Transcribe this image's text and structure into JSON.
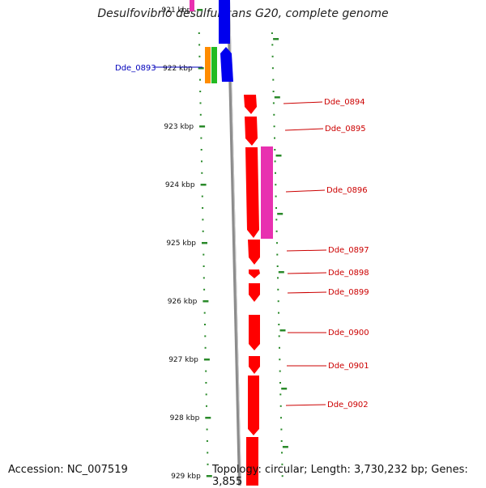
{
  "title": "Desulfovibrio desulfuricans G20, complete genome",
  "footer": {
    "accession": "Accession: NC_007519",
    "topology": "Topology: circular; Length: 3,730,232 bp; Genes: 3,855"
  },
  "colors": {
    "backbone": "#8c8c8c",
    "tick": "#2a8a2a",
    "forward_gene": "#ff0000",
    "reverse_gene": "#0000ee",
    "label_red": "#cc0000",
    "label_blue": "#0000bb"
  },
  "ticks": [
    {
      "label": "921 kbp",
      "kbp": 921
    },
    {
      "label": "922 kbp",
      "kbp": 922
    },
    {
      "label": "923 kbp",
      "kbp": 923
    },
    {
      "label": "924 kbp",
      "kbp": 924
    },
    {
      "label": "925 kbp",
      "kbp": 925
    },
    {
      "label": "926 kbp",
      "kbp": 926
    },
    {
      "label": "927 kbp",
      "kbp": 927
    },
    {
      "label": "928 kbp",
      "kbp": 928
    },
    {
      "label": "929 kbp",
      "kbp": 929
    }
  ],
  "gene_labels": [
    {
      "name": "Dde_0893",
      "color": "#0000bb"
    },
    {
      "name": "Dde_0894",
      "color": "#cc0000"
    },
    {
      "name": "Dde_0895",
      "color": "#cc0000"
    },
    {
      "name": "Dde_0896",
      "color": "#cc0000"
    },
    {
      "name": "Dde_0897",
      "color": "#cc0000"
    },
    {
      "name": "Dde_0898",
      "color": "#cc0000"
    },
    {
      "name": "Dde_0899",
      "color": "#cc0000"
    },
    {
      "name": "Dde_0900",
      "color": "#cc0000"
    },
    {
      "name": "Dde_0901",
      "color": "#cc0000"
    },
    {
      "name": "Dde_0902",
      "color": "#cc0000"
    }
  ]
}
